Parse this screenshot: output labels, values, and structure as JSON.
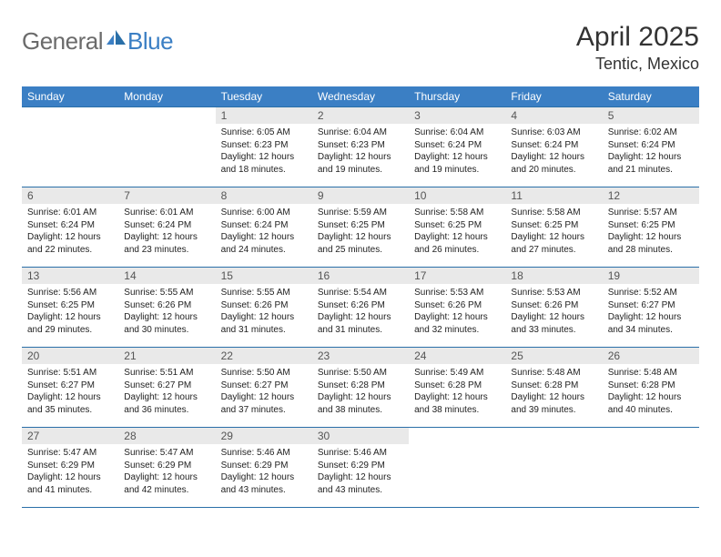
{
  "header": {
    "logo_general": "General",
    "logo_blue": "Blue",
    "month_title": "April 2025",
    "location": "Tentic, Mexico"
  },
  "colors": {
    "header_bar": "#3b7fc4",
    "header_border": "#2a6fa8",
    "daynum_bg": "#e9e9e9",
    "logo_gray": "#6b6b6b",
    "logo_blue": "#3b7fc4",
    "text": "#222222"
  },
  "days_of_week": [
    "Sunday",
    "Monday",
    "Tuesday",
    "Wednesday",
    "Thursday",
    "Friday",
    "Saturday"
  ],
  "calendar": {
    "first_weekday_index": 2,
    "days": [
      {
        "n": 1,
        "sunrise": "6:05 AM",
        "sunset": "6:23 PM",
        "daylight": "12 hours and 18 minutes."
      },
      {
        "n": 2,
        "sunrise": "6:04 AM",
        "sunset": "6:23 PM",
        "daylight": "12 hours and 19 minutes."
      },
      {
        "n": 3,
        "sunrise": "6:04 AM",
        "sunset": "6:24 PM",
        "daylight": "12 hours and 19 minutes."
      },
      {
        "n": 4,
        "sunrise": "6:03 AM",
        "sunset": "6:24 PM",
        "daylight": "12 hours and 20 minutes."
      },
      {
        "n": 5,
        "sunrise": "6:02 AM",
        "sunset": "6:24 PM",
        "daylight": "12 hours and 21 minutes."
      },
      {
        "n": 6,
        "sunrise": "6:01 AM",
        "sunset": "6:24 PM",
        "daylight": "12 hours and 22 minutes."
      },
      {
        "n": 7,
        "sunrise": "6:01 AM",
        "sunset": "6:24 PM",
        "daylight": "12 hours and 23 minutes."
      },
      {
        "n": 8,
        "sunrise": "6:00 AM",
        "sunset": "6:24 PM",
        "daylight": "12 hours and 24 minutes."
      },
      {
        "n": 9,
        "sunrise": "5:59 AM",
        "sunset": "6:25 PM",
        "daylight": "12 hours and 25 minutes."
      },
      {
        "n": 10,
        "sunrise": "5:58 AM",
        "sunset": "6:25 PM",
        "daylight": "12 hours and 26 minutes."
      },
      {
        "n": 11,
        "sunrise": "5:58 AM",
        "sunset": "6:25 PM",
        "daylight": "12 hours and 27 minutes."
      },
      {
        "n": 12,
        "sunrise": "5:57 AM",
        "sunset": "6:25 PM",
        "daylight": "12 hours and 28 minutes."
      },
      {
        "n": 13,
        "sunrise": "5:56 AM",
        "sunset": "6:25 PM",
        "daylight": "12 hours and 29 minutes."
      },
      {
        "n": 14,
        "sunrise": "5:55 AM",
        "sunset": "6:26 PM",
        "daylight": "12 hours and 30 minutes."
      },
      {
        "n": 15,
        "sunrise": "5:55 AM",
        "sunset": "6:26 PM",
        "daylight": "12 hours and 31 minutes."
      },
      {
        "n": 16,
        "sunrise": "5:54 AM",
        "sunset": "6:26 PM",
        "daylight": "12 hours and 31 minutes."
      },
      {
        "n": 17,
        "sunrise": "5:53 AM",
        "sunset": "6:26 PM",
        "daylight": "12 hours and 32 minutes."
      },
      {
        "n": 18,
        "sunrise": "5:53 AM",
        "sunset": "6:26 PM",
        "daylight": "12 hours and 33 minutes."
      },
      {
        "n": 19,
        "sunrise": "5:52 AM",
        "sunset": "6:27 PM",
        "daylight": "12 hours and 34 minutes."
      },
      {
        "n": 20,
        "sunrise": "5:51 AM",
        "sunset": "6:27 PM",
        "daylight": "12 hours and 35 minutes."
      },
      {
        "n": 21,
        "sunrise": "5:51 AM",
        "sunset": "6:27 PM",
        "daylight": "12 hours and 36 minutes."
      },
      {
        "n": 22,
        "sunrise": "5:50 AM",
        "sunset": "6:27 PM",
        "daylight": "12 hours and 37 minutes."
      },
      {
        "n": 23,
        "sunrise": "5:50 AM",
        "sunset": "6:28 PM",
        "daylight": "12 hours and 38 minutes."
      },
      {
        "n": 24,
        "sunrise": "5:49 AM",
        "sunset": "6:28 PM",
        "daylight": "12 hours and 38 minutes."
      },
      {
        "n": 25,
        "sunrise": "5:48 AM",
        "sunset": "6:28 PM",
        "daylight": "12 hours and 39 minutes."
      },
      {
        "n": 26,
        "sunrise": "5:48 AM",
        "sunset": "6:28 PM",
        "daylight": "12 hours and 40 minutes."
      },
      {
        "n": 27,
        "sunrise": "5:47 AM",
        "sunset": "6:29 PM",
        "daylight": "12 hours and 41 minutes."
      },
      {
        "n": 28,
        "sunrise": "5:47 AM",
        "sunset": "6:29 PM",
        "daylight": "12 hours and 42 minutes."
      },
      {
        "n": 29,
        "sunrise": "5:46 AM",
        "sunset": "6:29 PM",
        "daylight": "12 hours and 43 minutes."
      },
      {
        "n": 30,
        "sunrise": "5:46 AM",
        "sunset": "6:29 PM",
        "daylight": "12 hours and 43 minutes."
      }
    ]
  },
  "labels": {
    "sunrise_prefix": "Sunrise: ",
    "sunset_prefix": "Sunset: ",
    "daylight_prefix": "Daylight: "
  }
}
